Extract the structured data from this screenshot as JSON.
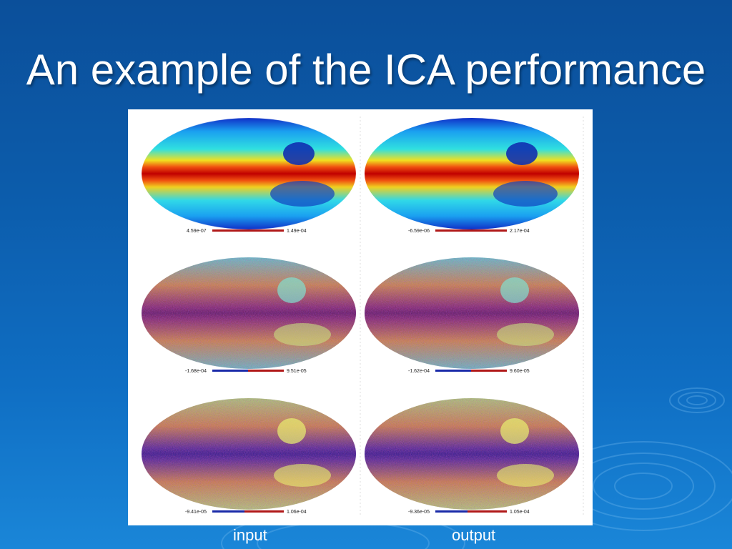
{
  "slide": {
    "title": "An example of the ICA performance"
  },
  "captions": {
    "input": "input",
    "output": "output"
  },
  "maps": [
    {
      "row": "top",
      "column": "input",
      "colorbar_min": "4.59e-07",
      "colorbar_max": "1.49e-04",
      "style": "component-a"
    },
    {
      "row": "top",
      "column": "output",
      "colorbar_min": "-6.59e-06",
      "colorbar_max": "2.17e-04",
      "style": "component-a"
    },
    {
      "row": "middle",
      "column": "input",
      "colorbar_min": "-1.68e-04",
      "colorbar_max": "9.51e-05",
      "style": "component-b"
    },
    {
      "row": "middle",
      "column": "output",
      "colorbar_min": "-1.62e-04",
      "colorbar_max": "9.60e-05",
      "style": "component-b"
    },
    {
      "row": "bottom",
      "column": "input",
      "colorbar_min": "-9.41e-05",
      "colorbar_max": "1.06e-04",
      "style": "component-c"
    },
    {
      "row": "bottom",
      "column": "output",
      "colorbar_min": "-9.36e-05",
      "colorbar_max": "1.05e-04",
      "style": "component-c"
    }
  ],
  "colors": {
    "background_top": "#0b4f9a",
    "background_bottom": "#1a86d8",
    "title": "#ffffff",
    "colorbar_blue": "#1a2aa8",
    "colorbar_red": "#b01818"
  }
}
